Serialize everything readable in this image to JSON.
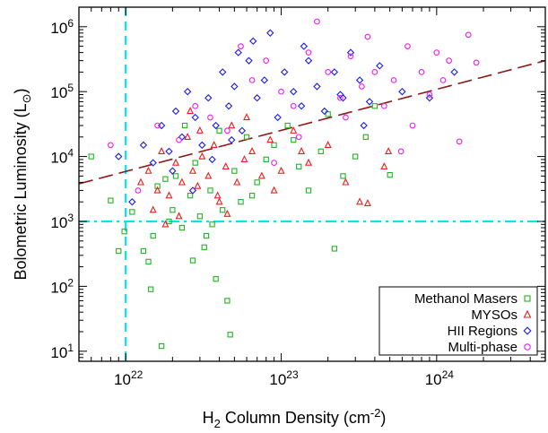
{
  "chart_data": {
    "type": "scatter",
    "x_scale": "log",
    "y_scale": "log",
    "xlim": [
      5e+21,
      5e+24
    ],
    "ylim": [
      7,
      2000000.0
    ],
    "x_ticks": [
      {
        "value": 1e+22,
        "base": "10",
        "exp": "22"
      },
      {
        "value": 1e+23,
        "base": "10",
        "exp": "23"
      },
      {
        "value": 1e+24,
        "base": "10",
        "exp": "24"
      }
    ],
    "y_ticks": [
      {
        "value": 10,
        "base": "10",
        "exp": "1"
      },
      {
        "value": 100,
        "base": "10",
        "exp": "2"
      },
      {
        "value": 1000,
        "base": "10",
        "exp": "3"
      },
      {
        "value": 10000,
        "base": "10",
        "exp": "4"
      },
      {
        "value": 100000,
        "base": "10",
        "exp": "5"
      },
      {
        "value": 1000000,
        "base": "10",
        "exp": "6"
      }
    ],
    "xlabel": {
      "main": "H",
      "sub": "2",
      "rest": " Column Density (cm",
      "sup": "-2",
      "end": ")"
    },
    "ylabel": {
      "main": "Bolometric Luminosity (L",
      "sub": "⊙",
      "end": ")"
    },
    "legend_position": "bottom-right",
    "threshold_lines": [
      {
        "axis": "x",
        "value": 1e+22,
        "color": "#00e5ee",
        "style": "dashed"
      },
      {
        "axis": "y",
        "value": 1000,
        "color": "#00e5ee",
        "style": "dash-dot"
      }
    ],
    "fit_line": {
      "color": "#8b1a1a",
      "style": "long-dash",
      "points": [
        [
          5e+21,
          3800
        ],
        [
          5e+24,
          300000
        ]
      ]
    },
    "series": [
      {
        "name": "Methanol Masers",
        "marker": "square",
        "color": "#22b422",
        "points": [
          [
            6e+21,
            10000
          ],
          [
            8e+21,
            2100
          ],
          [
            9e+21,
            350
          ],
          [
            9.8e+21,
            700
          ],
          [
            1.3e+22,
            350
          ],
          [
            1.4e+22,
            240
          ],
          [
            1.45e+22,
            90
          ],
          [
            1.5e+22,
            600
          ],
          [
            1.7e+22,
            12
          ],
          [
            1.9e+22,
            1000
          ],
          [
            2e+22,
            1500
          ],
          [
            2.1e+22,
            5000
          ],
          [
            2.3e+22,
            800
          ],
          [
            2.6e+22,
            2500
          ],
          [
            2.8e+22,
            8000
          ],
          [
            3e+22,
            1200
          ],
          [
            3.2e+22,
            400
          ],
          [
            3.5e+22,
            3000
          ],
          [
            3.8e+22,
            130
          ],
          [
            4.2e+22,
            1500
          ],
          [
            4.5e+22,
            60
          ],
          [
            4.7e+22,
            18
          ],
          [
            5e+22,
            6000
          ],
          [
            5.5e+22,
            2000
          ],
          [
            6e+22,
            20000
          ],
          [
            7e+22,
            4000
          ],
          [
            8e+22,
            9000
          ],
          [
            9e+22,
            15000
          ],
          [
            1.1e+23,
            30000
          ],
          [
            1.3e+23,
            7000
          ],
          [
            1.5e+23,
            3000
          ],
          [
            1.8e+23,
            12000
          ],
          [
            2.2e+23,
            380
          ],
          [
            2.5e+23,
            5000
          ],
          [
            3e+23,
            10000
          ],
          [
            3.5e+23,
            20000
          ],
          [
            5e+23,
            5200
          ],
          [
            1.6e+22,
            3500
          ],
          [
            1.8e+22,
            4500
          ],
          [
            2.4e+22,
            30000
          ],
          [
            3.3e+22,
            600
          ],
          [
            4e+22,
            25000
          ],
          [
            6.5e+22,
            2500
          ],
          [
            1.2e+23,
            18000
          ],
          [
            2e+23,
            45000
          ],
          [
            4e+23,
            60000
          ],
          [
            1.1e+22,
            1400
          ],
          [
            2.7e+22,
            250
          ],
          [
            3.6e+22,
            900
          ]
        ]
      },
      {
        "name": "MYSOs",
        "marker": "triangle",
        "color": "#ee1c1c",
        "points": [
          [
            1.25e+22,
            4000
          ],
          [
            1.4e+22,
            6000
          ],
          [
            1.6e+22,
            3000
          ],
          [
            1.7e+22,
            12000
          ],
          [
            1.9e+22,
            2500
          ],
          [
            2.1e+22,
            8000
          ],
          [
            2.3e+22,
            4000
          ],
          [
            2.5e+22,
            20000
          ],
          [
            2.7e+22,
            6000
          ],
          [
            2.9e+22,
            3500
          ],
          [
            3.1e+22,
            10000
          ],
          [
            3.4e+22,
            5000
          ],
          [
            3.7e+22,
            15000
          ],
          [
            4e+22,
            2000
          ],
          [
            4.4e+22,
            7000
          ],
          [
            4.8e+22,
            30000
          ],
          [
            5.2e+22,
            4000
          ],
          [
            5.8e+22,
            9000
          ],
          [
            6.5e+22,
            12000
          ],
          [
            7.5e+22,
            5000
          ],
          [
            8.5e+22,
            18000
          ],
          [
            1e+23,
            6000
          ],
          [
            1.2e+23,
            25000
          ],
          [
            1.5e+23,
            8000
          ],
          [
            2e+23,
            15000
          ],
          [
            2.6e+23,
            4000
          ],
          [
            3.2e+23,
            2000
          ],
          [
            3.6e+23,
            1900
          ],
          [
            4.6e+23,
            7000
          ],
          [
            4.9e+23,
            12000
          ],
          [
            1.5e+22,
            1500
          ],
          [
            2.2e+22,
            1200
          ],
          [
            3e+22,
            25000
          ],
          [
            4.5e+22,
            1300
          ],
          [
            6e+22,
            40000
          ],
          [
            9e+22,
            3000
          ],
          [
            1.8e+22,
            900
          ],
          [
            2.6e+22,
            50000
          ],
          [
            3.9e+22,
            2500
          ],
          [
            1.35e+23,
            12000
          ]
        ]
      },
      {
        "name": "HII Regions",
        "marker": "diamond",
        "color": "#1a1aee",
        "points": [
          [
            9e+21,
            10000
          ],
          [
            1.1e+22,
            2000
          ],
          [
            1.3e+22,
            15000
          ],
          [
            1.5e+22,
            8000
          ],
          [
            1.7e+22,
            30000
          ],
          [
            1.9e+22,
            12000
          ],
          [
            2.1e+22,
            50000
          ],
          [
            2.3e+22,
            20000
          ],
          [
            2.5e+22,
            100000
          ],
          [
            2.8e+22,
            40000
          ],
          [
            3.1e+22,
            15000
          ],
          [
            3.4e+22,
            80000
          ],
          [
            3.8e+22,
            30000
          ],
          [
            4.2e+22,
            200000
          ],
          [
            4.6e+22,
            60000
          ],
          [
            5e+22,
            120000
          ],
          [
            5.6e+22,
            25000
          ],
          [
            6.2e+22,
            300000
          ],
          [
            7e+22,
            80000
          ],
          [
            7.8e+22,
            150000
          ],
          [
            8.5e+22,
            800000
          ],
          [
            9.5e+22,
            40000
          ],
          [
            1.05e+23,
            200000
          ],
          [
            1.2e+23,
            100000
          ],
          [
            1.35e+23,
            60000
          ],
          [
            1.5e+23,
            300000
          ],
          [
            1.7e+23,
            120000
          ],
          [
            1.9e+23,
            50000
          ],
          [
            2.2e+23,
            200000
          ],
          [
            2.5e+23,
            80000
          ],
          [
            2.8e+23,
            400000
          ],
          [
            3.2e+23,
            150000
          ],
          [
            3.7e+23,
            70000
          ],
          [
            4.3e+23,
            250000
          ],
          [
            6e+23,
            100000
          ],
          [
            9e+23,
            80000
          ],
          [
            1.3e+24,
            200000
          ],
          [
            2e+22,
            6000
          ],
          [
            2.7e+22,
            3000
          ],
          [
            3.6e+22,
            9000
          ],
          [
            4.8e+22,
            18000
          ],
          [
            5.3e+22,
            400000
          ],
          [
            6.6e+22,
            600000
          ],
          [
            1.4e+23,
            500000
          ],
          [
            2.4e+23,
            90000
          ],
          [
            3.4e+23,
            30000
          ]
        ]
      },
      {
        "name": "Multi-phase",
        "marker": "circle",
        "color": "#ee1cee",
        "points": [
          [
            8e+21,
            15000
          ],
          [
            1.2e+22,
            3000
          ],
          [
            1.6e+22,
            30000
          ],
          [
            2.2e+22,
            18000
          ],
          [
            2.8e+22,
            60000
          ],
          [
            3.5e+22,
            40000
          ],
          [
            4.5e+22,
            25000
          ],
          [
            5.5e+22,
            500000
          ],
          [
            6.5e+22,
            150000
          ],
          [
            8e+22,
            300000
          ],
          [
            1e+23,
            100000
          ],
          [
            1.2e+23,
            60000
          ],
          [
            1.5e+23,
            400000
          ],
          [
            1.7e+23,
            1200000
          ],
          [
            2e+23,
            200000
          ],
          [
            2.4e+23,
            80000
          ],
          [
            2.8e+23,
            350000
          ],
          [
            3.3e+23,
            120000
          ],
          [
            4e+23,
            200000
          ],
          [
            4.6e+23,
            60000
          ],
          [
            5.3e+23,
            150000
          ],
          [
            6.5e+23,
            500000
          ],
          [
            8e+23,
            200000
          ],
          [
            1e+24,
            400000
          ],
          [
            1.2e+24,
            300000
          ],
          [
            1.4e+24,
            17000
          ],
          [
            1.6e+24,
            750000
          ],
          [
            1.8e+24,
            280000
          ],
          [
            7e+23,
            30000
          ],
          [
            9e+23,
            90000
          ],
          [
            1.1e+24,
            150000
          ],
          [
            3.6e+23,
            700000
          ],
          [
            2.6e+23,
            40000
          ],
          [
            5.9e+23,
            12000
          ],
          [
            1.3e+23,
            20000
          ],
          [
            9e+22,
            8000
          ]
        ]
      }
    ]
  }
}
